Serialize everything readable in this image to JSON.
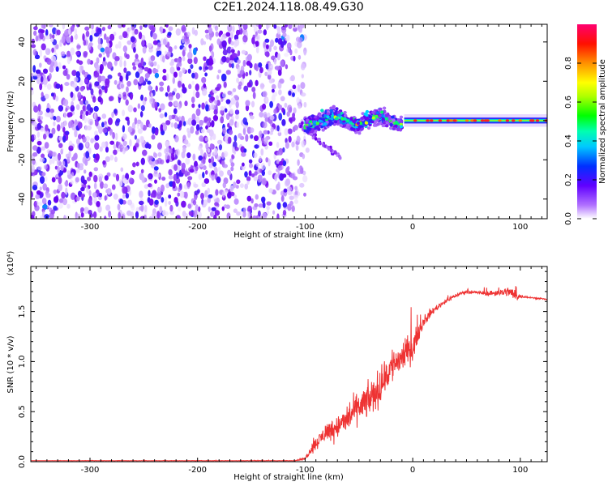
{
  "title": "C2E1.2024.118.08.49.G30",
  "chart_data": [
    {
      "type": "heatmap",
      "title": "C2E1.2024.118.08.49.G30",
      "xlabel": "Height of straight line (km)",
      "ylabel": "Frequency (Hz)",
      "xlim": [
        -355,
        125
      ],
      "ylim": [
        -50,
        49
      ],
      "xticks": [
        -300,
        -200,
        -100,
        0,
        100
      ],
      "yticks": [
        -40,
        -20,
        0,
        20,
        40
      ],
      "colorbar": {
        "label": "Normalized spectral amplitude",
        "range": [
          0.0,
          1.0
        ],
        "ticks": [
          0.0,
          0.2,
          0.4,
          0.6,
          0.8
        ],
        "colors": [
          "#ffffff",
          "#8000ff",
          "#0000ff",
          "#00ffff",
          "#00ff00",
          "#ffff00",
          "#ff8000",
          "#ff0000",
          "#ff0080"
        ]
      },
      "regions": [
        {
          "name": "noise",
          "x": [
            -355,
            -100
          ],
          "y": [
            -50,
            49
          ],
          "amplitude": 0.25
        },
        {
          "name": "transition",
          "x": [
            -100,
            -10
          ],
          "y": [
            -8,
            8
          ],
          "amplitude": 0.5
        },
        {
          "name": "carrier",
          "x": [
            -10,
            125
          ],
          "y": [
            0,
            0
          ],
          "amplitude": 0.9
        }
      ],
      "grid": false
    },
    {
      "type": "line",
      "xlabel": "Height of straight line (km)",
      "ylabel": "SNR (10 * v/v)",
      "exponent_label": "(x10⁴)",
      "xlim": [
        -355,
        125
      ],
      "ylim": [
        0.0,
        1.95
      ],
      "xticks": [
        -300,
        -200,
        -100,
        0,
        100
      ],
      "yticks": [
        0.0,
        0.5,
        1.0,
        1.5
      ],
      "series": [
        {
          "color": "#ee3333",
          "x": [
            -355,
            -300,
            -250,
            -200,
            -150,
            -110,
            -100,
            -95,
            -80,
            -65,
            -50,
            -40,
            -30,
            -20,
            -10,
            0,
            10,
            20,
            30,
            40,
            50,
            60,
            70,
            80,
            90,
            95,
            100,
            110,
            125
          ],
          "y": [
            0.01,
            0.01,
            0.01,
            0.01,
            0.01,
            0.01,
            0.03,
            0.12,
            0.3,
            0.38,
            0.55,
            0.62,
            0.75,
            0.95,
            1.05,
            1.15,
            1.4,
            1.52,
            1.6,
            1.66,
            1.7,
            1.69,
            1.68,
            1.69,
            1.7,
            1.66,
            1.65,
            1.64,
            1.62
          ],
          "noise": [
            0.0,
            0.003,
            0.003,
            0.003,
            0.003,
            0.003,
            0.02,
            0.08,
            0.15,
            0.2,
            0.25,
            0.28,
            0.3,
            0.3,
            0.28,
            0.2,
            0.08,
            0.05,
            0.04,
            0.03,
            0.03,
            0.03,
            0.04,
            0.06,
            0.08,
            0.12,
            0.03,
            0.01,
            0.01
          ]
        }
      ],
      "grid": false
    }
  ]
}
